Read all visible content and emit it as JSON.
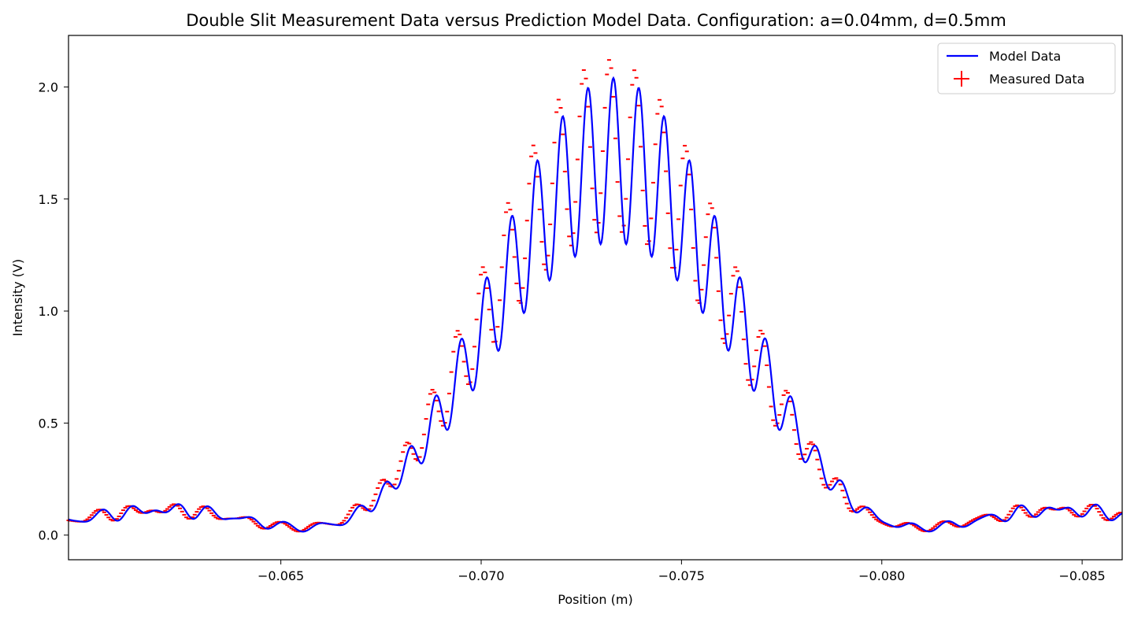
{
  "chart_data": {
    "type": "line",
    "title": "Double Slit Measurement Data versus Prediction Model Data. Configuration: a=0.04mm, d=0.5mm",
    "xlabel": "Position (m)",
    "ylabel": "Intensity (V)",
    "xlim": [
      -0.0597,
      -0.086
    ],
    "ylim": [
      -0.11,
      2.23
    ],
    "x_axis_inverted": true,
    "grid": false,
    "legend_position": "top-right",
    "xticks": [
      -0.065,
      -0.07,
      -0.075,
      -0.08,
      -0.085
    ],
    "xtick_labels": [
      "−0.065",
      "−0.070",
      "−0.075",
      "−0.080",
      "−0.085"
    ],
    "yticks": [
      0.0,
      0.5,
      1.0,
      1.5,
      2.0
    ],
    "ytick_labels": [
      "0.0",
      "0.5",
      "1.0",
      "1.5",
      "2.0"
    ],
    "model": {
      "name": "Model Data",
      "color": "#0000ff",
      "envelope_center": -0.0733,
      "envelope_peak": 2.04,
      "slit_width_mm": 0.04,
      "slit_separation_mm": 0.5,
      "fringe_period": 0.000635,
      "diffraction_first_zero": -0.0655,
      "baseline_wobble": 0.035
    },
    "measured": {
      "name": "Measured Data",
      "color": "#ff0000",
      "marker": "+",
      "sample_spacing": 5.25e-05,
      "peak_offset": -0.0001,
      "peak_scale": 1.04
    }
  }
}
